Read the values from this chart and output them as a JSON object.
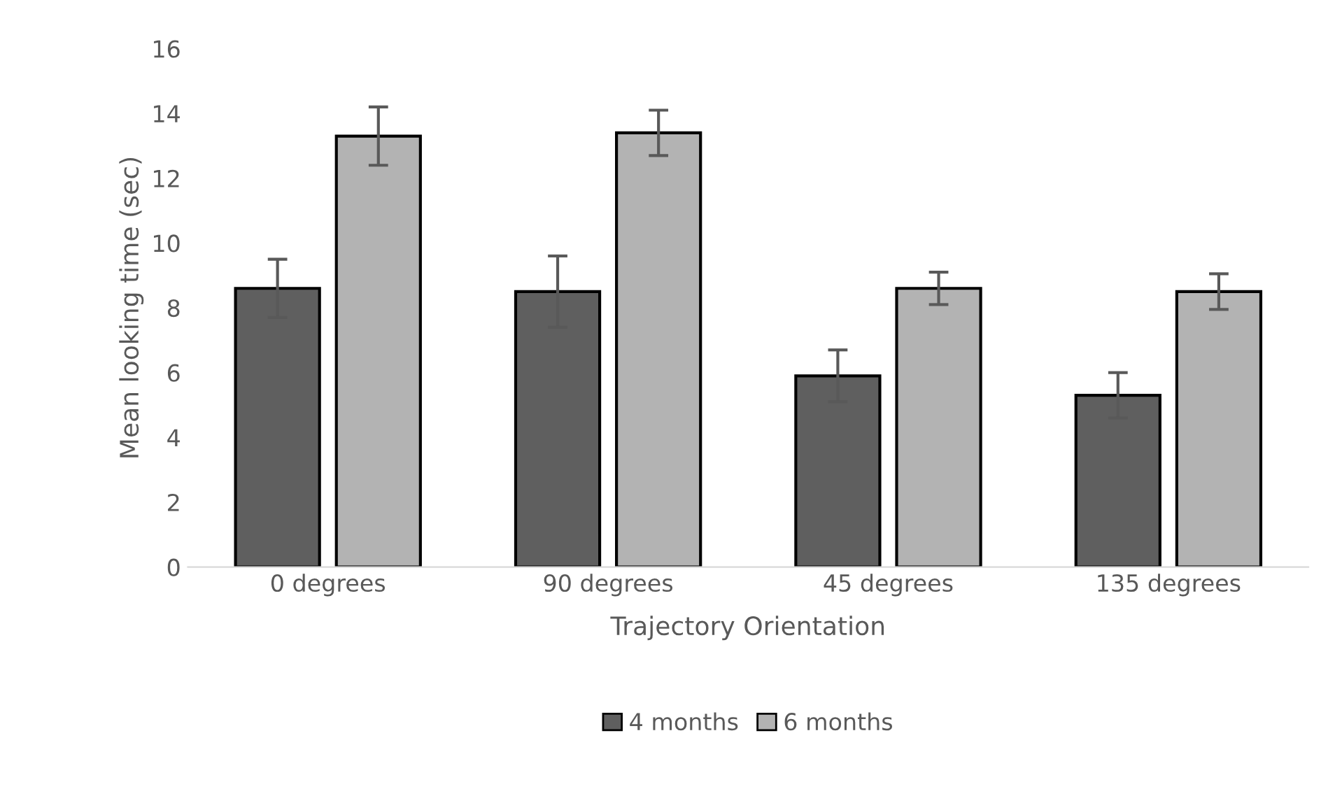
{
  "chart_data": {
    "type": "bar",
    "xlabel": "Trajectory Orientation",
    "ylabel": "Mean looking time (sec)",
    "categories": [
      "0 degrees",
      "90 degrees",
      "45 degrees",
      "135 degrees"
    ],
    "series": [
      {
        "name": "4 months",
        "color": "#5f5f5f",
        "values": [
          8.6,
          8.5,
          5.9,
          5.3
        ],
        "errors": [
          0.9,
          1.1,
          0.8,
          0.7
        ]
      },
      {
        "name": "6 months",
        "color": "#b3b3b3",
        "values": [
          13.3,
          13.4,
          8.6,
          8.5
        ],
        "errors": [
          0.9,
          0.7,
          0.5,
          0.55
        ]
      }
    ],
    "ylim": [
      0,
      16
    ],
    "yticks": [
      0,
      2,
      4,
      6,
      8,
      10,
      12,
      14,
      16
    ],
    "grid": false,
    "legend": "bottom"
  }
}
